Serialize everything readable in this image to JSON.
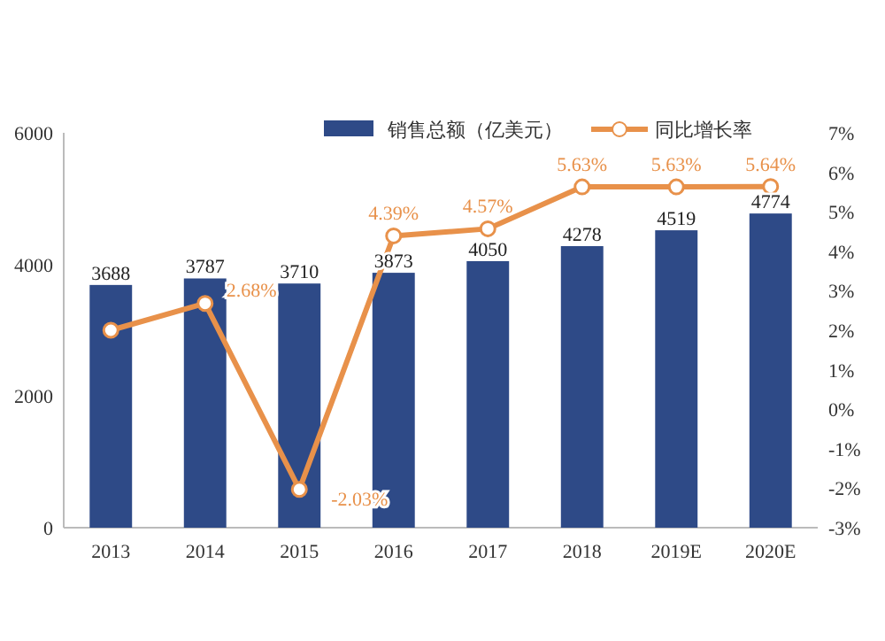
{
  "chart_data": {
    "type": "bar",
    "categories": [
      "2013",
      "2014",
      "2015",
      "2016",
      "2017",
      "2018",
      "2019E",
      "2020E"
    ],
    "series": [
      {
        "name": "销售总额（亿美元）",
        "color": "#2e4a87",
        "values": [
          3688,
          3787,
          3710,
          3873,
          4050,
          4278,
          4519,
          4774
        ],
        "value_labels": [
          "3688",
          "3787",
          "3710",
          "3873",
          "4050",
          "4278",
          "4519",
          "4774"
        ]
      },
      {
        "name": "同比增长率",
        "type": "line",
        "axis": "y2",
        "color": "#e8914a",
        "marker": "circle",
        "values": [
          2.0,
          2.68,
          -2.03,
          4.39,
          4.57,
          5.63,
          5.63,
          5.64
        ],
        "value_labels": [
          null,
          "2.68%",
          "-2.03%",
          "4.39%",
          "4.57%",
          "5.63%",
          "5.63%",
          "5.64%"
        ]
      }
    ],
    "ylim": [
      0,
      6000
    ],
    "yticks": [
      0,
      2000,
      4000,
      6000
    ],
    "y2lim": [
      -3,
      7
    ],
    "y2ticks": [
      {
        "value": -3,
        "label": "-3%"
      },
      {
        "value": -2,
        "label": "-2%"
      },
      {
        "value": -1,
        "label": "-1%"
      },
      {
        "value": 0,
        "label": "0%"
      },
      {
        "value": 1,
        "label": "1%"
      },
      {
        "value": 2,
        "label": "2%"
      },
      {
        "value": 3,
        "label": "3%"
      },
      {
        "value": 4,
        "label": "4%"
      },
      {
        "value": 5,
        "label": "5%"
      },
      {
        "value": 6,
        "label": "6%"
      },
      {
        "value": 7,
        "label": "7%"
      }
    ],
    "legend": "top",
    "grid": false
  }
}
